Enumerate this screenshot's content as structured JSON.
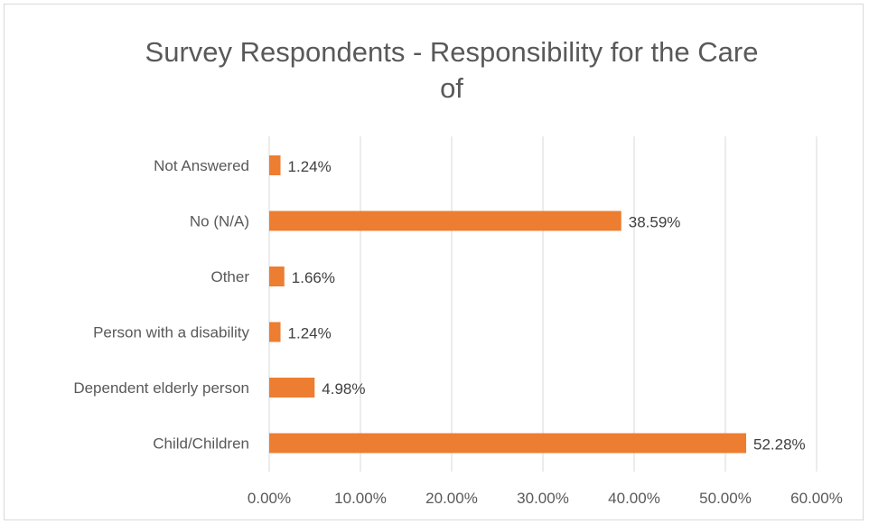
{
  "chart_data": {
    "type": "bar",
    "orientation": "horizontal",
    "title": "Survey Respondents - Responsibility for the Care of",
    "categories": [
      "Child/Children",
      "Dependent elderly person",
      "Person with a disability",
      "Other",
      "No (N/A)",
      "Not Answered"
    ],
    "values": [
      52.28,
      4.98,
      1.24,
      1.66,
      38.59,
      1.24
    ],
    "value_labels": [
      "52.28%",
      "4.98%",
      "1.24%",
      "1.66%",
      "38.59%",
      "1.24%"
    ],
    "xlim": [
      0,
      60
    ],
    "x_ticks": [
      "0.00%",
      "10.00%",
      "20.00%",
      "30.00%",
      "40.00%",
      "50.00%",
      "60.00%"
    ],
    "grid": true,
    "legend": "none",
    "colors": {
      "bar": "#ED7D31",
      "grid": "#D9D9D9",
      "text": "#595959",
      "label": "#404040"
    }
  }
}
